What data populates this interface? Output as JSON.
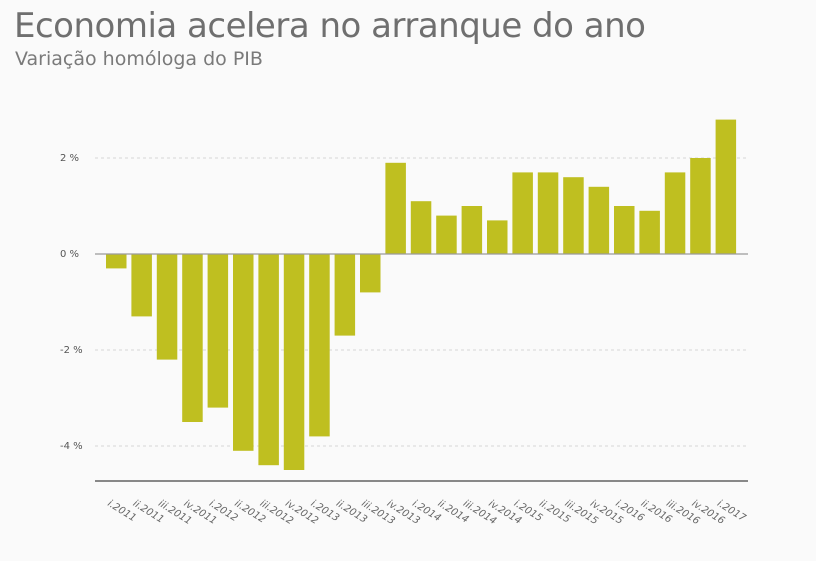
{
  "chart_data": {
    "type": "bar",
    "title": "Economia acelera no arranque do ano",
    "subtitle": "Variação homóloga do PIB",
    "xlabel": "",
    "ylabel": "",
    "ylim": [
      -4.7,
      3.3
    ],
    "yticks": [
      2,
      0,
      -2,
      -4
    ],
    "ytick_labels": [
      "2 %",
      "0 %",
      "-2 %",
      "-4 %"
    ],
    "grid": true,
    "bar_color": "#bfbf20",
    "categories": [
      "i.2011",
      "ii.2011",
      "iii.2011",
      "iv.2011",
      "i.2012",
      "ii.2012",
      "iii.2012",
      "iv.2012",
      "i.2013",
      "ii.2013",
      "iii.2013",
      "iv.2013",
      "i.2014",
      "ii.2014",
      "iii.2014",
      "iv.2014",
      "i.2015",
      "ii.2015",
      "iii.2015",
      "iv.2015",
      "i.2016",
      "ii.2016",
      "iii.2016",
      "iv.2016",
      "i.2017"
    ],
    "values": [
      -0.3,
      -1.3,
      -2.2,
      -3.5,
      -3.2,
      -4.1,
      -4.4,
      -4.5,
      -3.8,
      -1.7,
      -0.8,
      1.9,
      1.1,
      0.8,
      1.0,
      0.7,
      1.7,
      1.7,
      1.6,
      1.4,
      1.0,
      0.9,
      1.7,
      2.0,
      2.8
    ]
  }
}
